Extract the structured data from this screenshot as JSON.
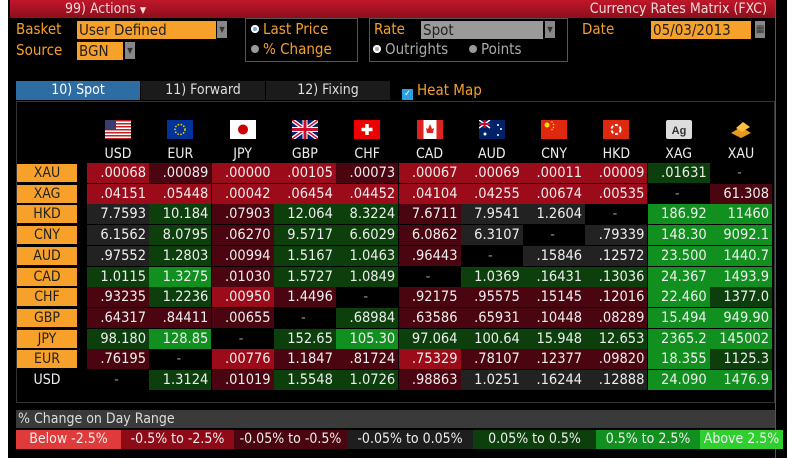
{
  "titlebar": {
    "actions": "99) Actions",
    "actions_icon": "triangle-down-icon",
    "title": "Currency Rates Matrix (FXC)"
  },
  "controls": {
    "basket_label": "Basket",
    "basket_value": "User Defined",
    "source_label": "Source",
    "source_value": "BGN",
    "display_options": [
      {
        "label": "Last Price",
        "selected": true
      },
      {
        "label": "% Change",
        "selected": false
      }
    ],
    "rate_label": "Rate",
    "rate_value": "Spot",
    "rate_options": [
      {
        "label": "Outrights",
        "selected": true
      },
      {
        "label": "Points",
        "selected": false
      }
    ],
    "date_label": "Date",
    "date_value": "05/03/2013"
  },
  "tabs": [
    {
      "label": "10) Spot",
      "active": true
    },
    {
      "label": "11) Forward",
      "active": false
    },
    {
      "label": "12) Fixing",
      "active": false
    }
  ],
  "heatmap": {
    "label": "Heat Map",
    "checked": true
  },
  "columns": [
    "USD",
    "EUR",
    "JPY",
    "GBP",
    "CHF",
    "CAD",
    "AUD",
    "CNY",
    "HKD",
    "XAG",
    "XAU"
  ],
  "colors": {
    "R": "#9c0b19",
    "D": "#4a0510",
    "N": "#222222",
    "K": "#000000",
    "G": "#0c3f0c",
    "M": "#12901f",
    "L": "#ff3b3b"
  },
  "rows": [
    {
      "label": "XAU",
      "values": [
        ".00068",
        ".00089",
        ".00000",
        ".00105",
        ".00073",
        ".00067",
        ".00069",
        ".00011",
        ".00009",
        ".01631",
        "-"
      ],
      "heat": [
        "R",
        "D",
        "R",
        "R",
        "D",
        "R",
        "R",
        "R",
        "R",
        "G",
        "K"
      ]
    },
    {
      "label": "XAG",
      "values": [
        ".04151",
        ".05448",
        ".00042",
        ".06454",
        ".04452",
        ".04104",
        ".04255",
        ".00674",
        ".00535",
        "-",
        "61.308"
      ],
      "heat": [
        "R",
        "R",
        "R",
        "R",
        "R",
        "R",
        "R",
        "R",
        "R",
        "K",
        "D"
      ]
    },
    {
      "label": "HKD",
      "values": [
        "7.7593",
        "10.184",
        ".07903",
        "12.064",
        "8.3224",
        "7.6711",
        "7.9541",
        "1.2604",
        "-",
        "186.92",
        "11460"
      ],
      "heat": [
        "N",
        "G",
        "D",
        "G",
        "G",
        "D",
        "N",
        "N",
        "K",
        "M",
        "M"
      ]
    },
    {
      "label": "CNY",
      "values": [
        "6.1562",
        "8.0795",
        ".06270",
        "9.5717",
        "6.6029",
        "6.0862",
        "6.3107",
        "-",
        ".79339",
        "148.30",
        "9092.1"
      ],
      "heat": [
        "N",
        "G",
        "D",
        "G",
        "G",
        "D",
        "N",
        "K",
        "N",
        "M",
        "M"
      ]
    },
    {
      "label": "AUD",
      "values": [
        ".97552",
        "1.2803",
        ".00994",
        "1.5167",
        "1.0463",
        ".96443",
        "-",
        ".15846",
        ".12572",
        "23.500",
        "1440.7"
      ],
      "heat": [
        "N",
        "G",
        "D",
        "G",
        "G",
        "D",
        "K",
        "N",
        "N",
        "M",
        "M"
      ]
    },
    {
      "label": "CAD",
      "values": [
        "1.0115",
        "1.3275",
        ".01030",
        "1.5727",
        "1.0849",
        "-",
        "1.0369",
        ".16431",
        ".13036",
        "24.367",
        "1493.9"
      ],
      "heat": [
        "G",
        "M",
        "D",
        "G",
        "G",
        "K",
        "G",
        "G",
        "G",
        "M",
        "M"
      ]
    },
    {
      "label": "CHF",
      "values": [
        ".93235",
        "1.2236",
        ".00950",
        "1.4496",
        "-",
        ".92175",
        ".95575",
        ".15145",
        ".12016",
        "22.460",
        "1377.0"
      ],
      "heat": [
        "D",
        "G",
        "R",
        "D",
        "K",
        "D",
        "D",
        "D",
        "D",
        "M",
        "G"
      ]
    },
    {
      "label": "GBP",
      "values": [
        ".64317",
        ".84411",
        ".00655",
        "-",
        ".68984",
        ".63586",
        ".65931",
        ".10448",
        ".08289",
        "15.494",
        "949.90"
      ],
      "heat": [
        "D",
        "D",
        "D",
        "K",
        "G",
        "D",
        "D",
        "D",
        "D",
        "M",
        "M"
      ]
    },
    {
      "label": "JPY",
      "values": [
        "98.180",
        "128.85",
        "-",
        "152.65",
        "105.30",
        "97.064",
        "100.64",
        "15.948",
        "12.653",
        "2365.2",
        "145002"
      ],
      "heat": [
        "G",
        "M",
        "K",
        "G",
        "M",
        "G",
        "G",
        "G",
        "G",
        "M",
        "M"
      ]
    },
    {
      "label": "EUR",
      "values": [
        ".76195",
        "-",
        ".00776",
        "1.1847",
        ".81724",
        ".75329",
        ".78107",
        ".12377",
        ".09820",
        "18.355",
        "1125.3"
      ],
      "heat": [
        "D",
        "K",
        "R",
        "D",
        "D",
        "R",
        "D",
        "D",
        "D",
        "M",
        "G"
      ]
    },
    {
      "label": "USD",
      "values": [
        "-",
        "1.3124",
        ".01019",
        "1.5548",
        "1.0726",
        ".98863",
        "1.0251",
        ".16244",
        ".12888",
        "24.090",
        "1476.9"
      ],
      "heat": [
        "K",
        "G",
        "D",
        "G",
        "G",
        "D",
        "N",
        "N",
        "N",
        "M",
        "M"
      ]
    }
  ],
  "legend": {
    "title": "% Change on Day Range",
    "items": [
      {
        "label": "Below -2.5%",
        "color": "#e13a3a"
      },
      {
        "label": "-0.5% to -2.5%",
        "color": "#8e0a17"
      },
      {
        "label": "-0.05% to -0.5%",
        "color": "#4a0510"
      },
      {
        "label": "-0.05% to 0.05%",
        "color": "#1e1e1e"
      },
      {
        "label": "0.05% to 0.5%",
        "color": "#0c3f0c"
      },
      {
        "label": "0.5% to 2.5%",
        "color": "#12901f"
      },
      {
        "label": "Above 2.5%",
        "color": "#2fcf2f"
      }
    ]
  }
}
